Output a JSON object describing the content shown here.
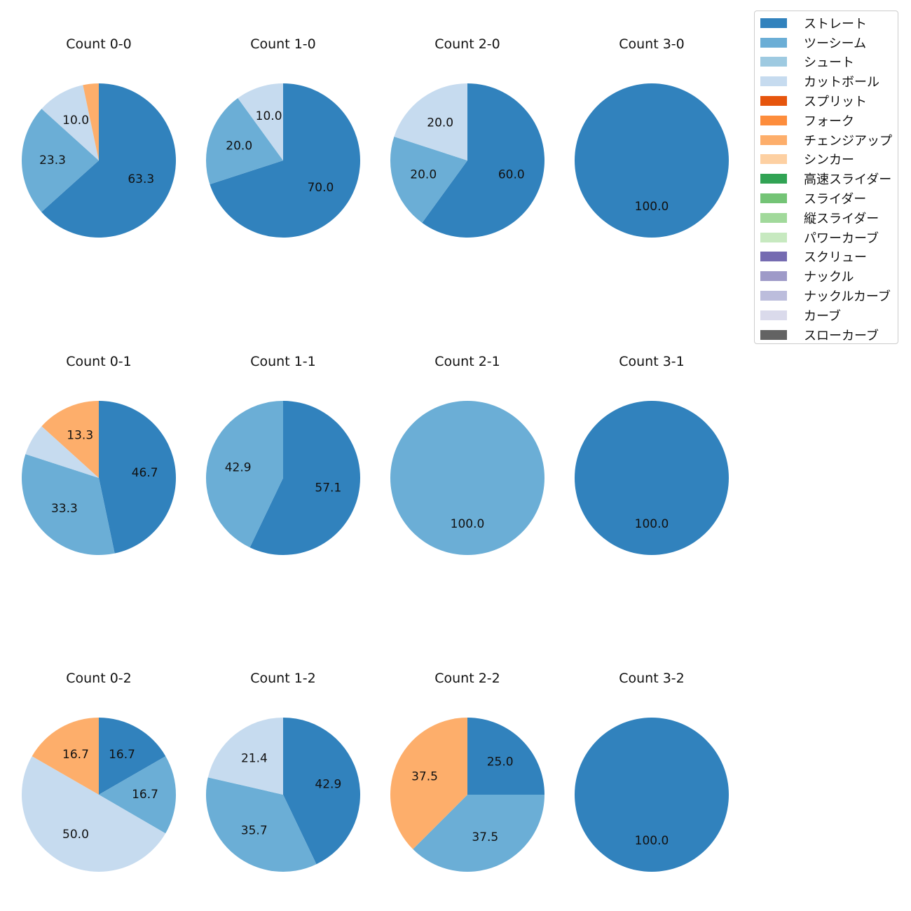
{
  "chart_data": {
    "type": "pie",
    "legend_position": "top-right",
    "legend": [
      {
        "name": "ストレート",
        "color": "#3182bd"
      },
      {
        "name": "ツーシーム",
        "color": "#6baed6"
      },
      {
        "name": "シュート",
        "color": "#9ecae1"
      },
      {
        "name": "カットボール",
        "color": "#c6dbef"
      },
      {
        "name": "スプリット",
        "color": "#e6550d"
      },
      {
        "name": "フォーク",
        "color": "#fd8d3c"
      },
      {
        "name": "チェンジアップ",
        "color": "#fdae6b"
      },
      {
        "name": "シンカー",
        "color": "#fdd0a2"
      },
      {
        "name": "高速スライダー",
        "color": "#31a354"
      },
      {
        "name": "スライダー",
        "color": "#74c476"
      },
      {
        "name": "縦スライダー",
        "color": "#a1d99b"
      },
      {
        "name": "パワーカーブ",
        "color": "#c7e9c0"
      },
      {
        "name": "スクリュー",
        "color": "#756bb1"
      },
      {
        "name": "ナックル",
        "color": "#9e9ac8"
      },
      {
        "name": "ナックルカーブ",
        "color": "#bcbddc"
      },
      {
        "name": "カーブ",
        "color": "#dadaeb"
      },
      {
        "name": "スローカーブ",
        "color": "#636363"
      }
    ],
    "panels": [
      {
        "title": "Count 0-0",
        "slices": [
          {
            "pitch": "ストレート",
            "value": 63.3,
            "label": "63.3"
          },
          {
            "pitch": "ツーシーム",
            "value": 23.3,
            "label": "23.3"
          },
          {
            "pitch": "カットボール",
            "value": 10.0,
            "label": "10.0"
          },
          {
            "pitch": "チェンジアップ",
            "value": 3.3,
            "label": ""
          }
        ]
      },
      {
        "title": "Count 1-0",
        "slices": [
          {
            "pitch": "ストレート",
            "value": 70.0,
            "label": "70.0"
          },
          {
            "pitch": "ツーシーム",
            "value": 20.0,
            "label": "20.0"
          },
          {
            "pitch": "カットボール",
            "value": 10.0,
            "label": "10.0"
          }
        ]
      },
      {
        "title": "Count 2-0",
        "slices": [
          {
            "pitch": "ストレート",
            "value": 60.0,
            "label": "60.0"
          },
          {
            "pitch": "ツーシーム",
            "value": 20.0,
            "label": "20.0"
          },
          {
            "pitch": "カットボール",
            "value": 20.0,
            "label": "20.0"
          }
        ]
      },
      {
        "title": "Count 3-0",
        "slices": [
          {
            "pitch": "ストレート",
            "value": 100.0,
            "label": "100.0"
          }
        ]
      },
      {
        "title": "Count 0-1",
        "slices": [
          {
            "pitch": "ストレート",
            "value": 46.7,
            "label": "46.7"
          },
          {
            "pitch": "ツーシーム",
            "value": 33.3,
            "label": "33.3"
          },
          {
            "pitch": "カットボール",
            "value": 6.7,
            "label": ""
          },
          {
            "pitch": "チェンジアップ",
            "value": 13.3,
            "label": "13.3"
          }
        ]
      },
      {
        "title": "Count 1-1",
        "slices": [
          {
            "pitch": "ストレート",
            "value": 57.1,
            "label": "57.1"
          },
          {
            "pitch": "ツーシーム",
            "value": 42.9,
            "label": "42.9"
          }
        ]
      },
      {
        "title": "Count 2-1",
        "slices": [
          {
            "pitch": "ツーシーム",
            "value": 100.0,
            "label": "100.0"
          }
        ]
      },
      {
        "title": "Count 3-1",
        "slices": [
          {
            "pitch": "ストレート",
            "value": 100.0,
            "label": "100.0"
          }
        ]
      },
      {
        "title": "Count 0-2",
        "slices": [
          {
            "pitch": "ストレート",
            "value": 16.7,
            "label": "16.7"
          },
          {
            "pitch": "ツーシーム",
            "value": 16.7,
            "label": "16.7"
          },
          {
            "pitch": "カットボール",
            "value": 50.0,
            "label": "50.0"
          },
          {
            "pitch": "チェンジアップ",
            "value": 16.7,
            "label": "16.7"
          }
        ]
      },
      {
        "title": "Count 1-2",
        "slices": [
          {
            "pitch": "ストレート",
            "value": 42.9,
            "label": "42.9"
          },
          {
            "pitch": "ツーシーム",
            "value": 35.7,
            "label": "35.7"
          },
          {
            "pitch": "カットボール",
            "value": 21.4,
            "label": "21.4"
          }
        ]
      },
      {
        "title": "Count 2-2",
        "slices": [
          {
            "pitch": "ストレート",
            "value": 25.0,
            "label": "25.0"
          },
          {
            "pitch": "ツーシーム",
            "value": 37.5,
            "label": "37.5"
          },
          {
            "pitch": "チェンジアップ",
            "value": 37.5,
            "label": "37.5"
          }
        ]
      },
      {
        "title": "Count 3-2",
        "slices": [
          {
            "pitch": "ストレート",
            "value": 100.0,
            "label": "100.0"
          }
        ]
      }
    ]
  }
}
